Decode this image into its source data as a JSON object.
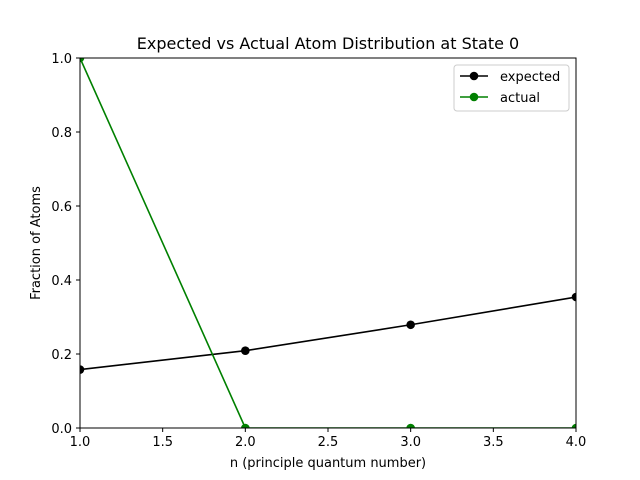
{
  "chart_data": {
    "type": "line",
    "title": "Expected vs Actual Atom Distribution at State 0",
    "xlabel": "n (principle quantum number)",
    "ylabel": "Fraction of Atoms",
    "xlim": [
      1.0,
      4.0
    ],
    "ylim": [
      0.0,
      1.0
    ],
    "xticks": [
      "1.0",
      "1.5",
      "2.0",
      "2.5",
      "3.0",
      "3.5",
      "4.0"
    ],
    "yticks": [
      "0.0",
      "0.2",
      "0.4",
      "0.6",
      "0.8",
      "1.0"
    ],
    "grid": false,
    "legend_position": "top-right",
    "x": [
      1,
      2,
      3,
      4
    ],
    "series": [
      {
        "name": "expected",
        "color": "#000000",
        "values": [
          0.158,
          0.209,
          0.279,
          0.354
        ]
      },
      {
        "name": "actual",
        "color": "#008000",
        "values": [
          1.0,
          0.0,
          0.0,
          0.0
        ]
      }
    ]
  }
}
